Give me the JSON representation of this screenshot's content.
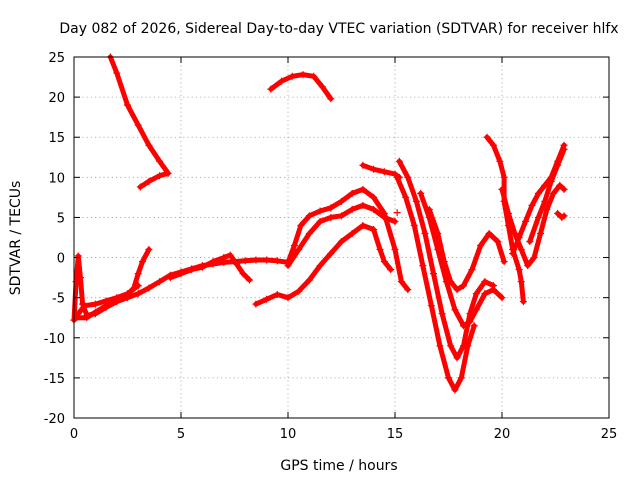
{
  "chart_data": {
    "type": "scatter",
    "title": "Day 082 of 2026, Sidereal Day-to-day VTEC variation (SDTVAR) for receiver hlfx",
    "xlabel": "GPS time / hours",
    "ylabel": "SDTVAR / TECUs",
    "xlim": [
      0,
      25
    ],
    "ylim": [
      -20,
      25
    ],
    "xticks": [
      0,
      5,
      10,
      15,
      20,
      25
    ],
    "yticks": [
      -20,
      -15,
      -10,
      -5,
      0,
      5,
      10,
      15,
      20,
      25
    ],
    "grid": true,
    "marker": "+",
    "color": "#ff0000",
    "series": [
      {
        "values": [
          [
            0.0,
            -7.8
          ],
          [
            0.1,
            -3.0
          ],
          [
            0.2,
            0.2
          ],
          [
            0.3,
            -2.5
          ],
          [
            0.4,
            -5.8
          ],
          [
            0.6,
            -7.2
          ],
          [
            1.0,
            -7.0
          ],
          [
            1.5,
            -6.2
          ],
          [
            2.0,
            -5.5
          ],
          [
            2.5,
            -5.0
          ],
          [
            3.0,
            -4.5
          ],
          [
            3.5,
            -3.8
          ],
          [
            4.0,
            -3.0
          ],
          [
            4.5,
            -2.2
          ],
          [
            5.0,
            -1.8
          ],
          [
            5.5,
            -1.4
          ],
          [
            6.0,
            -1.0
          ],
          [
            6.5,
            -0.8
          ],
          [
            7.0,
            -0.6
          ],
          [
            7.5,
            -0.5
          ],
          [
            8.0,
            -0.4
          ],
          [
            8.5,
            -0.3
          ],
          [
            9.0,
            -0.3
          ],
          [
            9.5,
            -0.4
          ],
          [
            10.0,
            -0.6
          ],
          [
            10.3,
            1.5
          ],
          [
            10.6,
            4.0
          ],
          [
            11.0,
            5.2
          ],
          [
            11.5,
            5.8
          ],
          [
            12.0,
            6.2
          ],
          [
            12.5,
            7.0
          ],
          [
            13.0,
            8.0
          ],
          [
            13.5,
            8.5
          ],
          [
            14.0,
            7.5
          ],
          [
            14.5,
            5.5
          ],
          [
            15.0,
            1.0
          ],
          [
            15.3,
            -3.0
          ],
          [
            15.6,
            -4.0
          ]
        ]
      },
      {
        "values": [
          [
            0.1,
            -7.5
          ],
          [
            0.6,
            -7.5
          ],
          [
            1.0,
            -6.8
          ],
          [
            1.5,
            -6.0
          ],
          [
            2.0,
            -5.2
          ],
          [
            2.5,
            -4.6
          ],
          [
            2.8,
            -3.8
          ],
          [
            3.0,
            -2.0
          ],
          [
            3.2,
            -0.5
          ],
          [
            3.5,
            1.0
          ]
        ]
      },
      {
        "values": [
          [
            0.2,
            -7.0
          ],
          [
            0.5,
            -6.0
          ],
          [
            1.0,
            -5.8
          ],
          [
            1.5,
            -5.4
          ],
          [
            2.0,
            -5.0
          ],
          [
            2.5,
            -4.5
          ],
          [
            3.0,
            -3.5
          ]
        ]
      },
      {
        "values": [
          [
            1.7,
            25.0
          ],
          [
            2.0,
            23.0
          ],
          [
            2.5,
            19.0
          ],
          [
            3.0,
            16.5
          ],
          [
            3.5,
            14.0
          ],
          [
            4.0,
            12.0
          ],
          [
            4.4,
            10.5
          ],
          [
            4.0,
            10.2
          ],
          [
            3.5,
            9.5
          ],
          [
            3.1,
            8.8
          ]
        ]
      },
      {
        "values": [
          [
            9.2,
            21.0
          ],
          [
            9.7,
            22.0
          ],
          [
            10.2,
            22.6
          ],
          [
            10.7,
            22.8
          ],
          [
            11.2,
            22.6
          ],
          [
            11.6,
            21.3
          ],
          [
            12.0,
            19.8
          ]
        ]
      },
      {
        "values": [
          [
            4.5,
            -2.5
          ],
          [
            5.0,
            -2.0
          ],
          [
            5.5,
            -1.5
          ],
          [
            6.0,
            -1.2
          ],
          [
            6.5,
            -0.5
          ],
          [
            7.0,
            0.0
          ],
          [
            7.3,
            0.3
          ],
          [
            7.6,
            -0.8
          ],
          [
            7.9,
            -2.0
          ],
          [
            8.2,
            -2.8
          ]
        ]
      },
      {
        "values": [
          [
            8.5,
            -5.8
          ],
          [
            9.0,
            -5.2
          ],
          [
            9.5,
            -4.6
          ],
          [
            10.0,
            -5.0
          ],
          [
            10.5,
            -4.2
          ],
          [
            11.0,
            -2.8
          ],
          [
            11.5,
            -1.0
          ],
          [
            12.0,
            0.5
          ],
          [
            12.5,
            2.0
          ],
          [
            13.0,
            3.0
          ],
          [
            13.5,
            4.0
          ],
          [
            14.0,
            3.5
          ],
          [
            14.3,
            1.0
          ],
          [
            14.5,
            -0.5
          ],
          [
            14.8,
            -1.5
          ]
        ]
      },
      {
        "values": [
          [
            10.0,
            -1.0
          ],
          [
            10.5,
            1.0
          ],
          [
            11.0,
            3.0
          ],
          [
            11.5,
            4.5
          ],
          [
            12.0,
            5.0
          ],
          [
            12.5,
            5.2
          ],
          [
            13.0,
            6.0
          ],
          [
            13.5,
            6.5
          ],
          [
            14.0,
            6.0
          ],
          [
            14.5,
            5.0
          ],
          [
            15.0,
            4.5
          ]
        ]
      },
      {
        "values": [
          [
            13.5,
            11.5
          ],
          [
            14.0,
            11.0
          ],
          [
            14.5,
            10.7
          ],
          [
            15.0,
            10.4
          ],
          [
            15.2,
            10.0
          ]
        ]
      },
      {
        "values": [
          [
            15.2,
            12.0
          ],
          [
            15.6,
            10.0
          ],
          [
            16.0,
            7.0
          ],
          [
            16.4,
            3.0
          ],
          [
            16.8,
            -2.0
          ],
          [
            17.2,
            -7.0
          ],
          [
            17.6,
            -11.0
          ],
          [
            17.9,
            -12.5
          ],
          [
            18.2,
            -11.0
          ],
          [
            18.5,
            -7.0
          ],
          [
            18.8,
            -4.5
          ],
          [
            19.2,
            -3.0
          ],
          [
            19.6,
            -3.5
          ]
        ]
      },
      {
        "values": [
          [
            15.1,
            10.0
          ],
          [
            15.5,
            7.5
          ],
          [
            15.9,
            4.0
          ],
          [
            16.3,
            -1.0
          ],
          [
            16.7,
            -6.0
          ],
          [
            17.1,
            -11.0
          ],
          [
            17.5,
            -15.0
          ],
          [
            17.8,
            -16.5
          ],
          [
            18.1,
            -15.0
          ],
          [
            18.4,
            -11.0
          ],
          [
            18.7,
            -8.5
          ]
        ]
      },
      {
        "values": [
          [
            16.2,
            8.0
          ],
          [
            16.6,
            5.0
          ],
          [
            17.0,
            1.0
          ],
          [
            17.4,
            -3.0
          ],
          [
            17.8,
            -6.5
          ],
          [
            18.2,
            -8.5
          ],
          [
            18.5,
            -8.0
          ],
          [
            18.8,
            -6.5
          ],
          [
            19.2,
            -4.5
          ],
          [
            19.6,
            -4.0
          ],
          [
            20.0,
            -5.0
          ]
        ]
      },
      {
        "values": [
          [
            16.6,
            6.0
          ],
          [
            17.0,
            3.0
          ],
          [
            17.3,
            -0.5
          ],
          [
            17.6,
            -3.0
          ],
          [
            17.9,
            -4.0
          ],
          [
            18.2,
            -3.5
          ],
          [
            18.6,
            -1.5
          ],
          [
            19.0,
            1.5
          ],
          [
            19.4,
            3.0
          ],
          [
            19.8,
            2.0
          ],
          [
            20.1,
            -0.5
          ]
        ]
      },
      {
        "values": [
          [
            19.3,
            15.0
          ],
          [
            19.6,
            14.0
          ],
          [
            19.9,
            12.0
          ],
          [
            20.1,
            10.0
          ],
          [
            20.1,
            7.0
          ],
          [
            20.3,
            4.0
          ],
          [
            20.5,
            1.0
          ],
          [
            20.8,
            -1.5
          ],
          [
            20.9,
            -3.0
          ],
          [
            21.0,
            -5.5
          ]
        ]
      },
      {
        "values": [
          [
            20.0,
            8.5
          ],
          [
            20.3,
            5.5
          ],
          [
            20.6,
            3.0
          ],
          [
            20.9,
            1.0
          ],
          [
            21.2,
            -1.0
          ],
          [
            21.5,
            0.0
          ],
          [
            21.8,
            3.0
          ],
          [
            22.1,
            6.0
          ],
          [
            22.4,
            8.0
          ],
          [
            22.7,
            9.0
          ],
          [
            22.9,
            8.5
          ]
        ]
      },
      {
        "values": [
          [
            20.5,
            0.5
          ],
          [
            20.8,
            2.5
          ],
          [
            21.1,
            4.5
          ],
          [
            21.4,
            6.5
          ],
          [
            21.7,
            8.0
          ],
          [
            22.0,
            9.0
          ],
          [
            22.3,
            10.0
          ],
          [
            22.6,
            12.0
          ],
          [
            22.9,
            14.0
          ]
        ]
      },
      {
        "values": [
          [
            21.3,
            2.0
          ],
          [
            21.7,
            5.0
          ],
          [
            22.0,
            7.0
          ],
          [
            22.3,
            9.5
          ],
          [
            22.6,
            11.5
          ],
          [
            22.9,
            13.5
          ]
        ]
      },
      {
        "values": [
          [
            22.6,
            5.5
          ],
          [
            22.8,
            5.0
          ],
          [
            22.9,
            5.2
          ]
        ]
      },
      {
        "values": [
          [
            15.1,
            5.6
          ]
        ]
      }
    ]
  }
}
